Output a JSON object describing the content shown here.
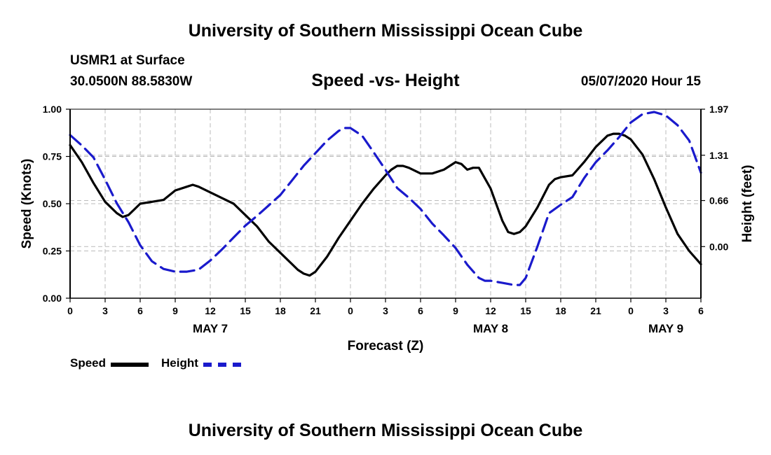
{
  "header": {
    "title_top": "University of Southern Mississippi Ocean Cube",
    "station": "USMR1 at Surface",
    "coords": "30.0500N 88.5830W",
    "chart_title": "Speed -vs- Height",
    "timestamp": "05/07/2020 Hour 15"
  },
  "footer": {
    "title_bottom": "University of Southern Mississippi Ocean Cube"
  },
  "legend": {
    "speed_label": "Speed",
    "height_label": "Height"
  },
  "colors": {
    "speed": "#000000",
    "height": "#1a1acc",
    "grid": "#bbbbbb"
  },
  "chart_data": {
    "type": "line",
    "title": "Speed -vs- Height",
    "xlabel": "Forecast (Z)",
    "ylabel": "Speed (Knots)",
    "ylabel_right": "Height (feet)",
    "x_range": [
      0,
      54
    ],
    "ylim": [
      0,
      1.0
    ],
    "ylim_right": [
      -0.74,
      1.97
    ],
    "x_ticks": [
      0,
      3,
      6,
      9,
      12,
      15,
      18,
      21,
      24,
      27,
      30,
      33,
      36,
      39,
      42,
      45,
      48,
      51,
      54
    ],
    "x_tick_labels": [
      "0",
      "3",
      "6",
      "9",
      "12",
      "15",
      "18",
      "21",
      "0",
      "3",
      "6",
      "9",
      "12",
      "15",
      "18",
      "21",
      "0",
      "3",
      "6"
    ],
    "date_labels": [
      {
        "label": "MAY 7",
        "x": 12
      },
      {
        "label": "MAY 8",
        "x": 36
      },
      {
        "label": "MAY 9",
        "x": 51
      }
    ],
    "y_ticks": [
      0,
      0.25,
      0.5,
      0.75,
      1.0
    ],
    "y_tick_labels": [
      "0.00",
      "0.25",
      "0.50",
      "0.75",
      "1.00"
    ],
    "y_ticks_right": [
      0.0,
      0.66,
      1.31,
      1.97
    ],
    "y_tick_labels_right": [
      "0.00",
      "0.66",
      "1.31",
      "1.97"
    ],
    "grid": true,
    "series": [
      {
        "name": "Speed",
        "axis": "left",
        "style": "solid",
        "x": [
          0,
          1,
          2,
          3,
          4,
          4.5,
          5,
          5.5,
          6,
          7,
          8,
          9,
          10,
          10.5,
          11,
          12,
          13,
          14,
          15,
          16,
          17,
          18,
          19,
          19.5,
          20,
          20.5,
          21,
          22,
          23,
          24,
          25,
          26,
          27,
          27.5,
          28,
          28.5,
          29,
          30,
          31,
          32,
          33,
          33.5,
          34,
          34.5,
          35,
          36,
          37,
          37.5,
          38,
          38.5,
          39,
          40,
          41,
          41.5,
          42,
          43,
          44,
          45,
          46,
          46.5,
          47,
          47.5,
          48,
          49,
          50,
          51,
          52,
          53,
          54
        ],
        "values": [
          0.81,
          0.72,
          0.61,
          0.51,
          0.45,
          0.43,
          0.44,
          0.47,
          0.5,
          0.51,
          0.52,
          0.57,
          0.59,
          0.6,
          0.59,
          0.56,
          0.53,
          0.5,
          0.44,
          0.38,
          0.3,
          0.24,
          0.18,
          0.15,
          0.13,
          0.12,
          0.14,
          0.22,
          0.32,
          0.41,
          0.5,
          0.58,
          0.65,
          0.68,
          0.7,
          0.7,
          0.69,
          0.66,
          0.66,
          0.68,
          0.72,
          0.71,
          0.68,
          0.69,
          0.69,
          0.58,
          0.41,
          0.35,
          0.34,
          0.35,
          0.38,
          0.48,
          0.6,
          0.63,
          0.64,
          0.65,
          0.72,
          0.8,
          0.86,
          0.87,
          0.87,
          0.86,
          0.84,
          0.76,
          0.63,
          0.48,
          0.34,
          0.25,
          0.18
        ]
      },
      {
        "name": "Height",
        "axis": "right",
        "style": "dashed",
        "x": [
          0,
          1,
          2,
          3,
          4,
          5,
          6,
          7,
          8,
          9,
          10,
          11,
          12,
          13,
          14,
          15,
          16,
          17,
          18,
          19,
          20,
          21,
          22,
          23,
          23.5,
          24,
          25,
          26,
          27,
          28,
          29,
          30,
          31,
          32,
          33,
          34,
          35,
          35.5,
          36,
          37,
          38,
          38.5,
          39,
          40,
          41,
          42,
          43,
          44,
          45,
          46,
          47,
          48,
          49,
          50,
          51,
          52,
          53,
          54
        ],
        "values": [
          1.6,
          1.45,
          1.28,
          0.96,
          0.62,
          0.35,
          0.02,
          -0.21,
          -0.32,
          -0.36,
          -0.36,
          -0.33,
          -0.2,
          -0.04,
          0.13,
          0.3,
          0.44,
          0.59,
          0.74,
          0.95,
          1.16,
          1.34,
          1.52,
          1.66,
          1.7,
          1.7,
          1.59,
          1.35,
          1.1,
          0.84,
          0.7,
          0.54,
          0.33,
          0.16,
          -0.02,
          -0.26,
          -0.45,
          -0.49,
          -0.49,
          -0.52,
          -0.55,
          -0.55,
          -0.45,
          0.0,
          0.48,
          0.6,
          0.71,
          0.98,
          1.21,
          1.38,
          1.57,
          1.78,
          1.9,
          1.93,
          1.88,
          1.74,
          1.52,
          1.06
        ]
      }
    ]
  }
}
